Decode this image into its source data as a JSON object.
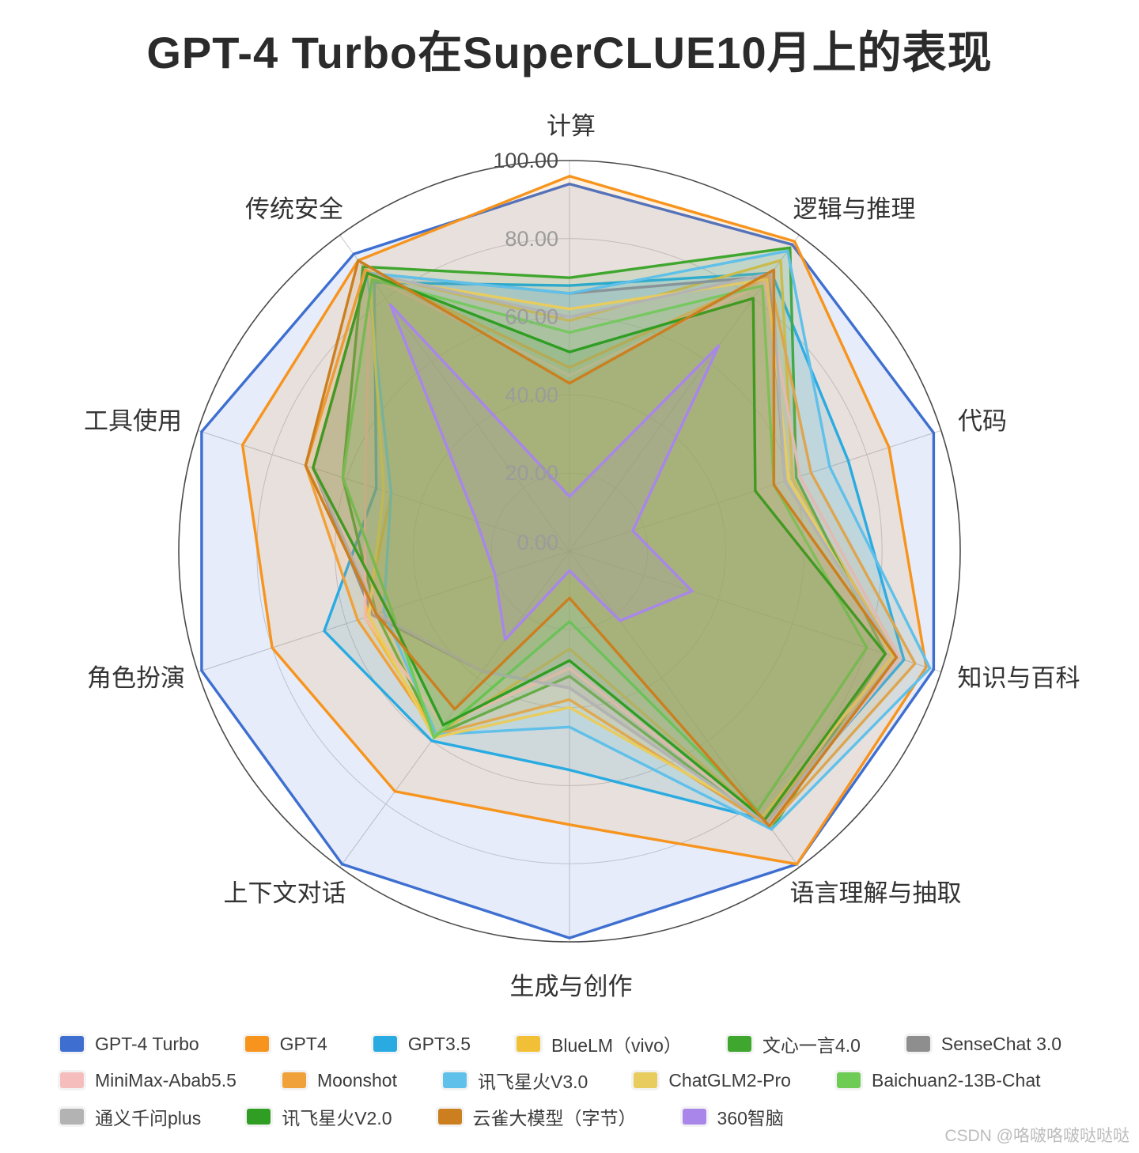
{
  "title": "GPT-4 Turbo在SuperCLUE10月上的表现",
  "watermark": "CSDN @咯啵咯啵哒哒哒",
  "chart_data": {
    "type": "radar",
    "categories": [
      "计算",
      "逻辑与推理",
      "代码",
      "知识与百科",
      "语言理解与抽取",
      "生成与创作",
      "上下文对话",
      "角色扮演",
      "工具使用",
      "传统安全"
    ],
    "radial_ticks": [
      100,
      80,
      60,
      40,
      20,
      0
    ],
    "radial_tick_labels": [
      "100.00",
      "80.00",
      "60.00",
      "40.00",
      "20.00",
      "0.00"
    ],
    "rlim": [
      0,
      100
    ],
    "grid": true,
    "legend_position": "bottom",
    "series": [
      {
        "name": "GPT-4 Turbo",
        "color": "#3e6fd0",
        "values": [
          94,
          97,
          98,
          98,
          99,
          99,
          99,
          99,
          99,
          94
        ]
      },
      {
        "name": "GPT4",
        "color": "#f7941d",
        "values": [
          96,
          98,
          86,
          96,
          99,
          70,
          76,
          80,
          88,
          92
        ]
      },
      {
        "name": "GPT3.5",
        "color": "#29abe2",
        "values": [
          68,
          88,
          75,
          90,
          85,
          56,
          60,
          66,
          52,
          85
        ]
      },
      {
        "name": "BlueLM（vivo）",
        "color": "#f2c037",
        "values": [
          59,
          92,
          60,
          88,
          85,
          25,
          58,
          55,
          48,
          88
        ]
      },
      {
        "name": "文心一言4.0",
        "color": "#3fa62e",
        "values": [
          70,
          96,
          61,
          85,
          88,
          32,
          58,
          52,
          61,
          90
        ]
      },
      {
        "name": "SenseChat 3.0",
        "color": "#8e8e8e",
        "values": [
          66,
          87,
          58,
          88,
          86,
          35,
          38,
          53,
          69,
          88
        ]
      },
      {
        "name": "MiniMax-Abab5.5",
        "color": "#f6bdbd",
        "values": [
          45,
          85,
          62,
          89,
          86,
          30,
          55,
          55,
          55,
          87
        ]
      },
      {
        "name": "Moonshot",
        "color": "#f0a13a",
        "values": [
          47,
          87,
          65,
          93,
          87,
          38,
          58,
          57,
          71,
          89
        ]
      },
      {
        "name": "讯飞星火V3.0",
        "color": "#5fc0ea",
        "values": [
          66,
          95,
          70,
          97,
          88,
          45,
          58,
          50,
          48,
          88
        ]
      },
      {
        "name": "ChatGLM2-Pro",
        "color": "#e8cc5e",
        "values": [
          62,
          86,
          59,
          87,
          84,
          40,
          59,
          54,
          50,
          87
        ]
      },
      {
        "name": "Baichuan2-13B-Chat",
        "color": "#6ecc55",
        "values": [
          56,
          84,
          55,
          80,
          82,
          18,
          59,
          48,
          61,
          86
        ]
      },
      {
        "name": "通义千问plus",
        "color": "#b3b3b3",
        "values": [
          60,
          88,
          58,
          88,
          86,
          35,
          38,
          52,
          69,
          88
        ]
      },
      {
        "name": "讯飞星火V2.0",
        "color": "#2f9e23",
        "values": [
          51,
          80,
          50,
          85,
          85,
          28,
          55,
          49,
          69,
          88
        ]
      },
      {
        "name": "云雀大模型（字节）",
        "color": "#cc7f1f",
        "values": [
          43,
          89,
          55,
          88,
          87,
          12,
          50,
          52,
          71,
          92
        ]
      },
      {
        "name": "360智脑",
        "color": "#a886ea",
        "values": [
          14,
          65,
          17,
          33,
          22,
          5,
          28,
          20,
          25,
          78
        ]
      }
    ]
  }
}
